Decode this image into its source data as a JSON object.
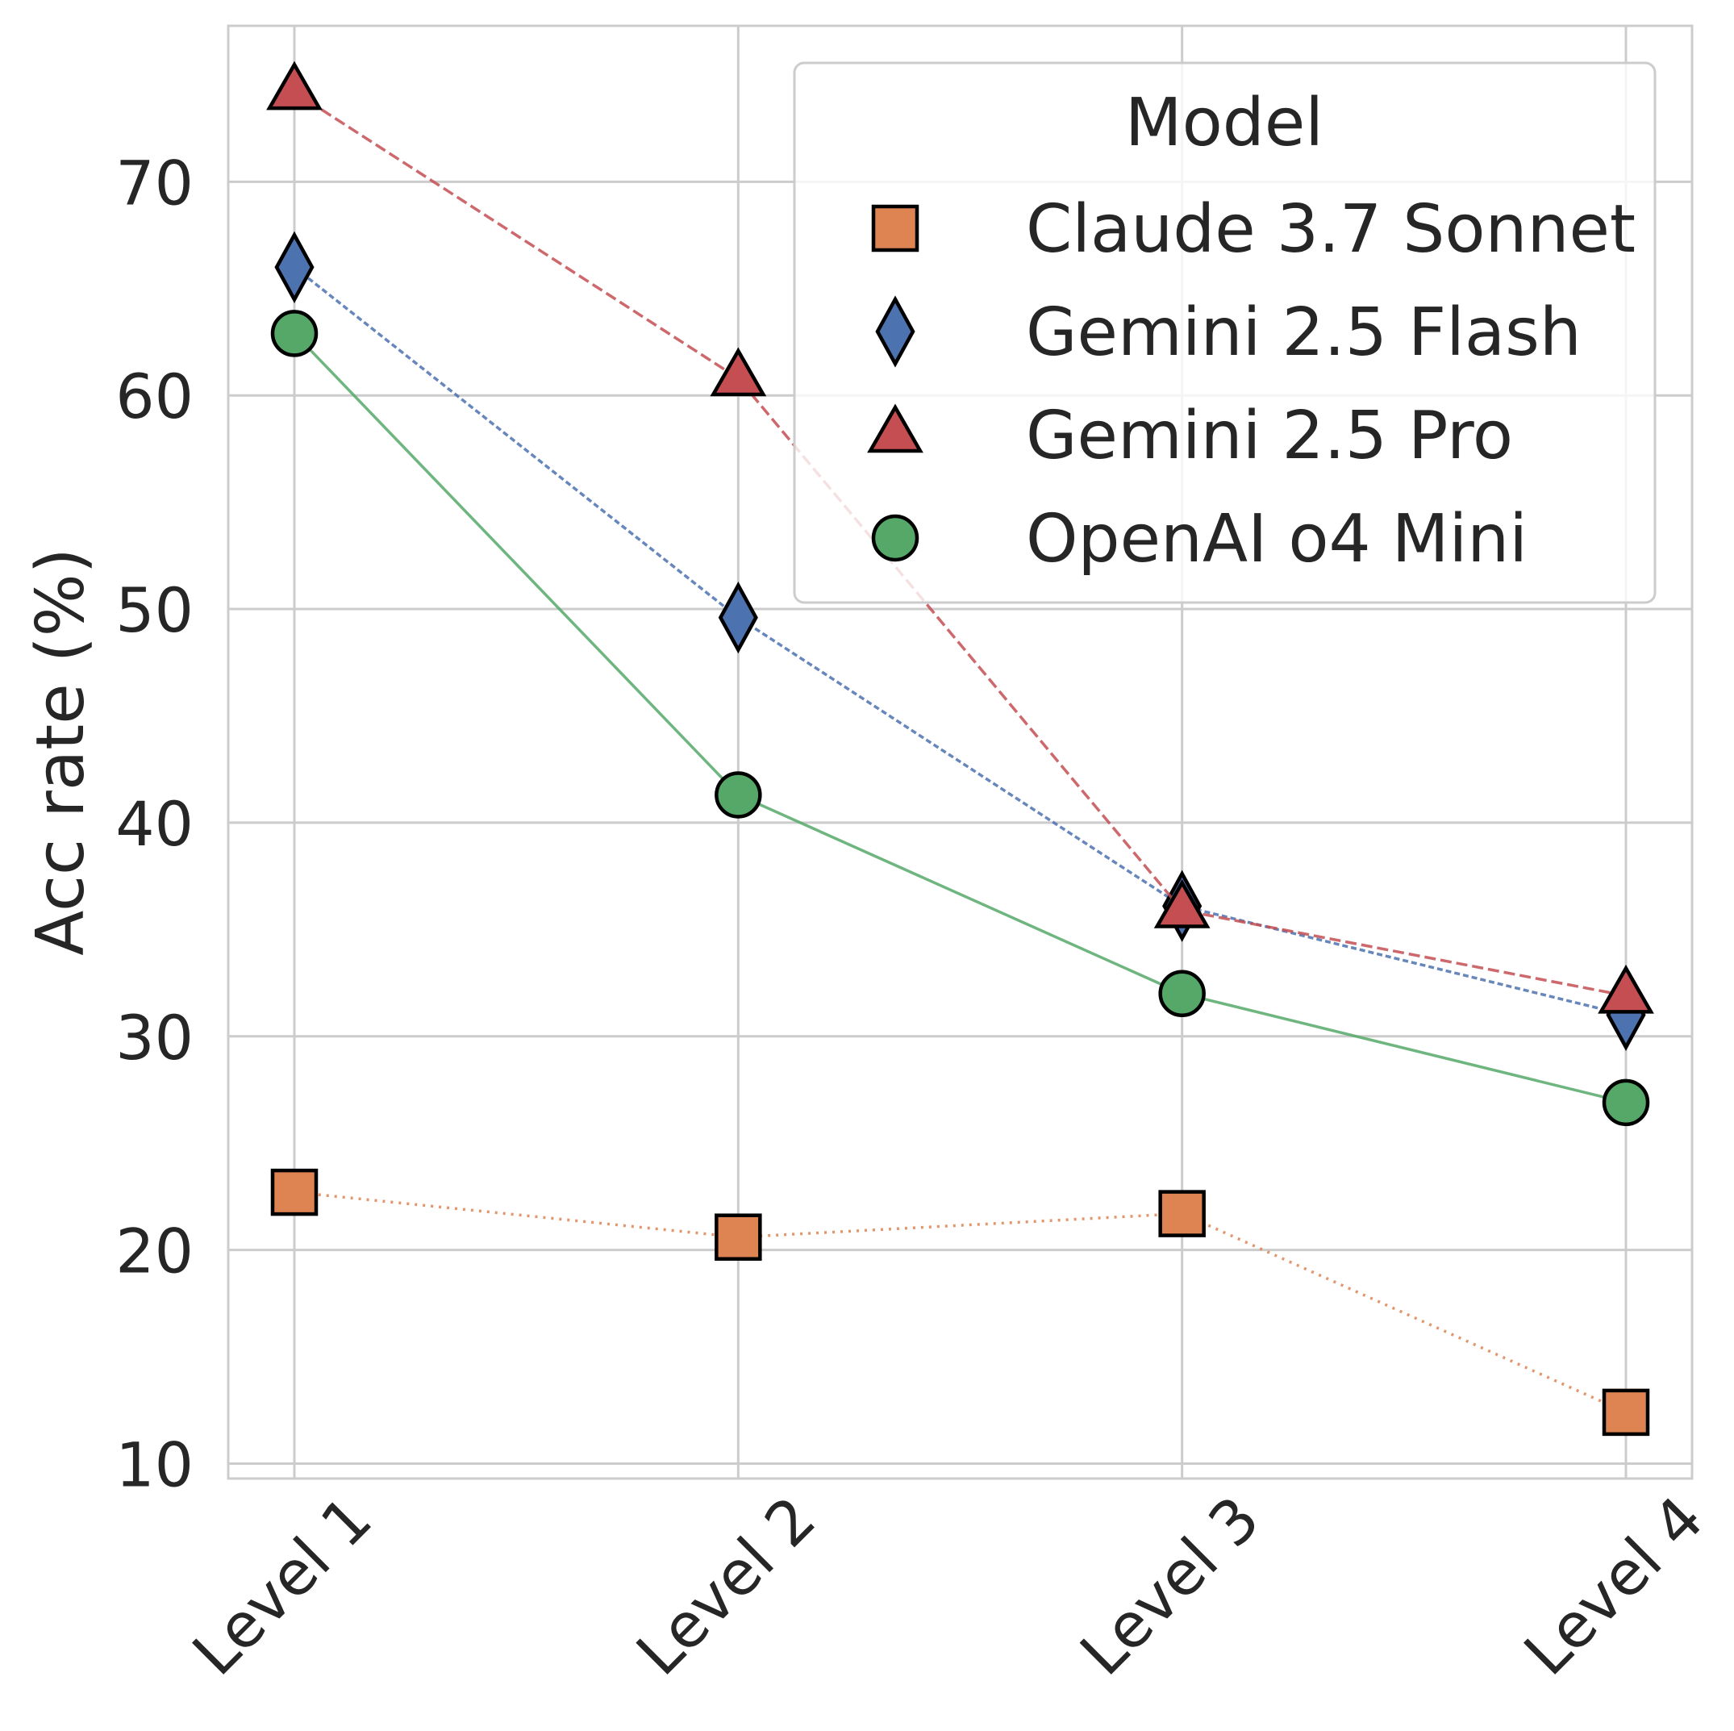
{
  "chart_data": {
    "type": "line",
    "title": "",
    "xlabel": "",
    "ylabel": "Acc rate (%)",
    "categories": [
      "Level 1",
      "Level 2",
      "Level 3",
      "Level 4"
    ],
    "ylim": [
      9.3,
      77.3
    ],
    "yticks": [
      10,
      20,
      30,
      40,
      50,
      60,
      70
    ],
    "grid": true,
    "legend": {
      "title": "Model",
      "placement": "top-right"
    },
    "series": [
      {
        "name": "Claude 3.7 Sonnet",
        "values": [
          22.7,
          20.6,
          21.7,
          12.4
        ],
        "color": "#dd8452",
        "marker": "square",
        "line_style": "dotted"
      },
      {
        "name": "Gemini 2.5 Flash",
        "values": [
          66.0,
          49.6,
          36.1,
          31.0
        ],
        "color": "#4c72b0",
        "marker": "diamond",
        "line_style": "short-dashed"
      },
      {
        "name": "Gemini 2.5 Pro",
        "values": [
          74.2,
          60.8,
          35.9,
          31.9
        ],
        "color": "#c44e52",
        "marker": "triangle",
        "line_style": "dashed"
      },
      {
        "name": "OpenAI o4 Mini",
        "values": [
          62.9,
          41.3,
          32.0,
          26.9
        ],
        "color": "#55a868",
        "marker": "circle",
        "line_style": "solid"
      }
    ]
  }
}
